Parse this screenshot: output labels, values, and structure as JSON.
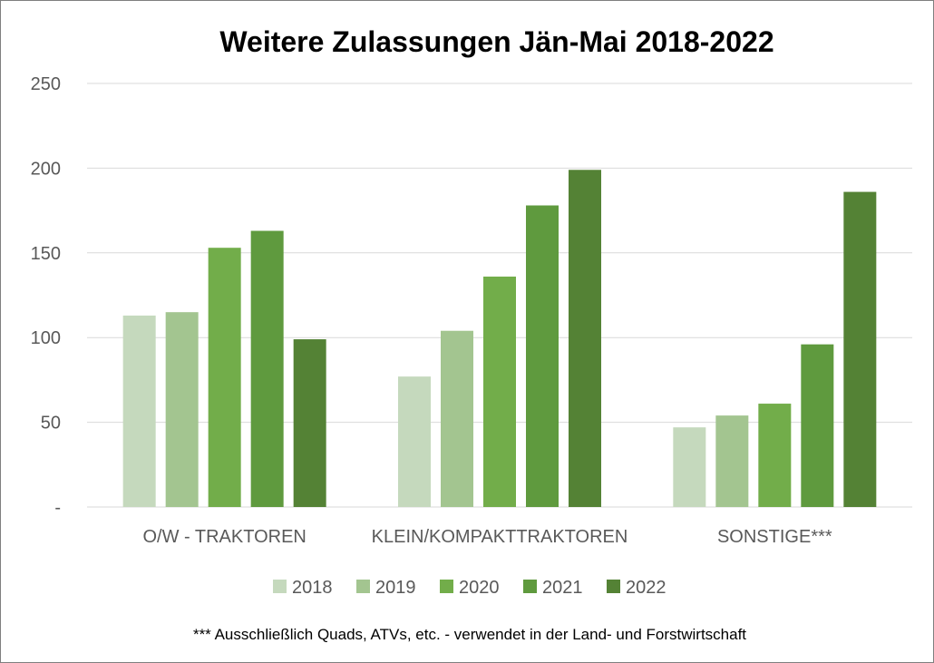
{
  "chart_data": {
    "type": "bar",
    "title": "Weitere Zulassungen Jän-Mai 2018-2022",
    "categories": [
      "O/W - TRAKTOREN",
      "KLEIN/KOMPAKTTRAKTOREN",
      "SONSTIGE***"
    ],
    "series": [
      {
        "name": "2018",
        "color": "#c5d9bd",
        "values": [
          113,
          77,
          47
        ]
      },
      {
        "name": "2019",
        "color": "#a3c590",
        "values": [
          115,
          104,
          54
        ]
      },
      {
        "name": "2020",
        "color": "#72ad4a",
        "values": [
          153,
          136,
          61
        ]
      },
      {
        "name": "2021",
        "color": "#5f9a3e",
        "values": [
          163,
          178,
          96
        ]
      },
      {
        "name": "2022",
        "color": "#548235",
        "values": [
          99,
          199,
          186
        ]
      }
    ],
    "ylim": [
      0,
      250
    ],
    "yticks": [
      0,
      50,
      100,
      150,
      200,
      250
    ],
    "ytick_labels": [
      "-",
      "50",
      "100",
      "150",
      "200",
      "250"
    ],
    "grid": true,
    "legend_position": "bottom",
    "xlabel": "",
    "ylabel": ""
  },
  "footnote": "*** Ausschließlich Quads, ATVs, etc. - verwendet in der Land- und Forstwirtschaft"
}
